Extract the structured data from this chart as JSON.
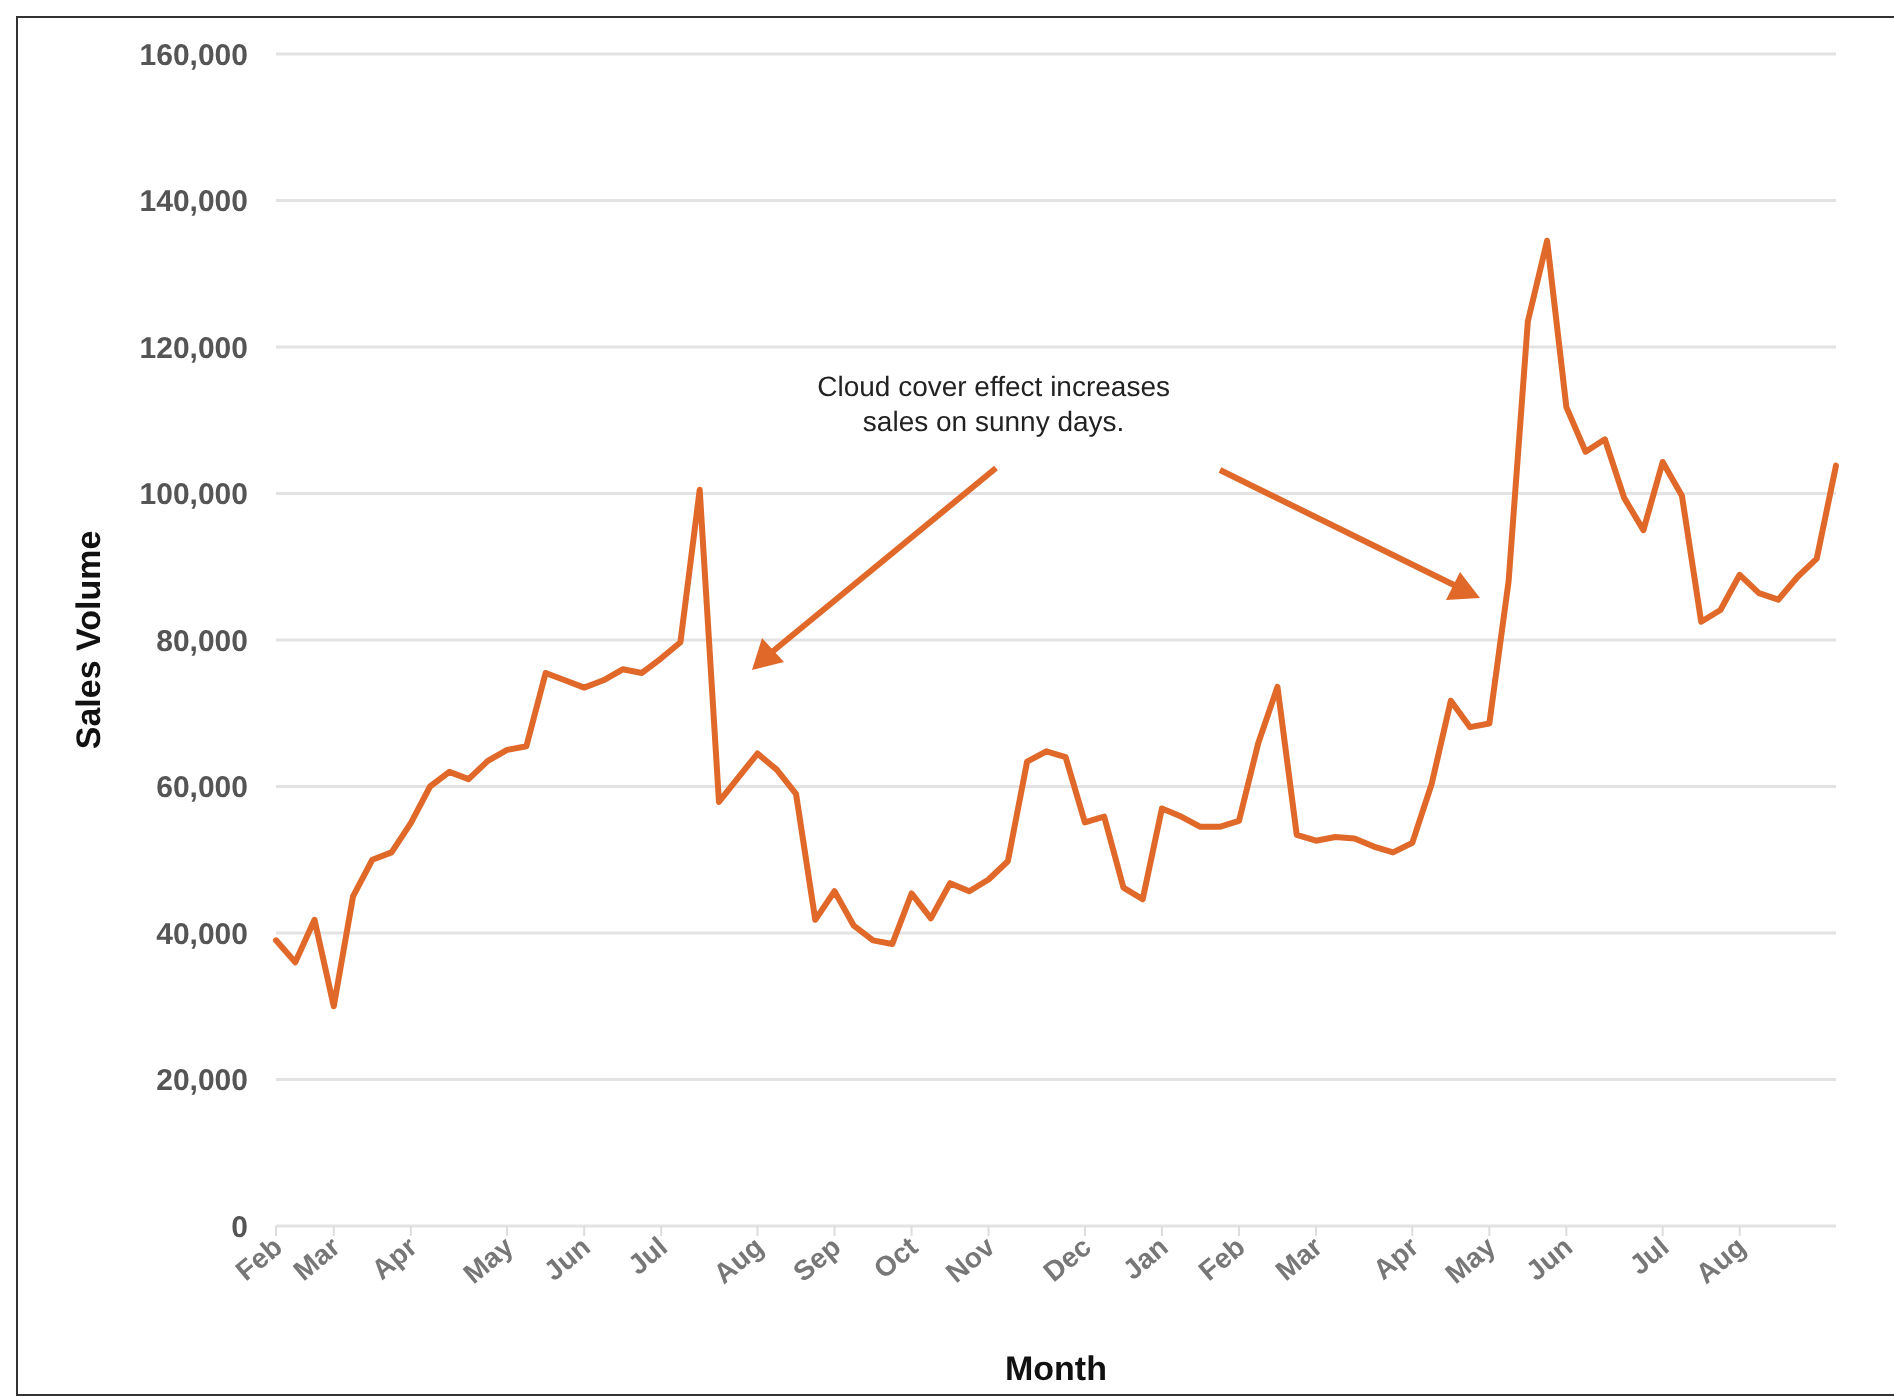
{
  "chart_data": {
    "type": "line",
    "xlabel": "Month",
    "ylabel": "Sales Volume",
    "categories": [
      "Feb",
      null,
      null,
      "Mar",
      null,
      null,
      null,
      "Apr",
      null,
      null,
      null,
      null,
      "May",
      null,
      null,
      null,
      "Jun",
      null,
      null,
      null,
      "Jul",
      null,
      null,
      null,
      null,
      "Aug",
      null,
      null,
      null,
      "Sep",
      null,
      null,
      null,
      "Oct",
      null,
      null,
      null,
      "Nov",
      null,
      null,
      null,
      null,
      "Dec",
      null,
      null,
      null,
      "Jan",
      null,
      null,
      null,
      "Feb",
      null,
      null,
      null,
      "Mar",
      null,
      null,
      null,
      null,
      "Apr",
      null,
      null,
      null,
      "May",
      null,
      null,
      null,
      "Jun",
      null,
      null,
      null,
      null,
      "Jul",
      null,
      null,
      null,
      "Aug",
      null,
      null,
      null,
      null,
      null
    ],
    "series": [
      {
        "color": "#e0692a",
        "values": [
          39000,
          36000,
          41800,
          30000,
          45000,
          50000,
          51000,
          55000,
          60000,
          62000,
          61000,
          63500,
          65000,
          65500,
          75500,
          74500,
          73500,
          74500,
          76000,
          75500,
          77500,
          79700,
          100500,
          57900,
          61200,
          64500,
          62300,
          59000,
          41800,
          45700,
          41000,
          39000,
          38500,
          45400,
          42000,
          46800,
          45700,
          47300,
          49800,
          63400,
          64800,
          64000,
          55100,
          55900,
          46200,
          44600,
          57000,
          55900,
          54500,
          54500,
          55300,
          65900,
          73600,
          53400,
          52600,
          53100,
          52900,
          51800,
          51000,
          52300,
          60300,
          71700,
          68100,
          68600,
          88000,
          123500,
          134500,
          111800,
          105700,
          107400,
          99400,
          95000,
          104300,
          99700,
          82500,
          84100,
          88900,
          86400,
          85500,
          88600,
          91100,
          103800
        ]
      }
    ],
    "ylim": [
      0,
      160000
    ],
    "yticks": [
      {
        "value": 0,
        "label": "0"
      },
      {
        "value": 20000,
        "label": "20,000"
      },
      {
        "value": 40000,
        "label": "40,000"
      },
      {
        "value": 60000,
        "label": "60,000"
      },
      {
        "value": 80000,
        "label": "80,000"
      },
      {
        "value": 100000,
        "label": "100,000"
      },
      {
        "value": 120000,
        "label": "120,000"
      },
      {
        "value": 140000,
        "label": "140,000"
      },
      {
        "value": 160000,
        "label": "160,000"
      }
    ],
    "grid": "y",
    "marker": "none",
    "line_style": "solid",
    "annotations": [
      "Cloud cover effect increases sales on sunny days."
    ]
  }
}
